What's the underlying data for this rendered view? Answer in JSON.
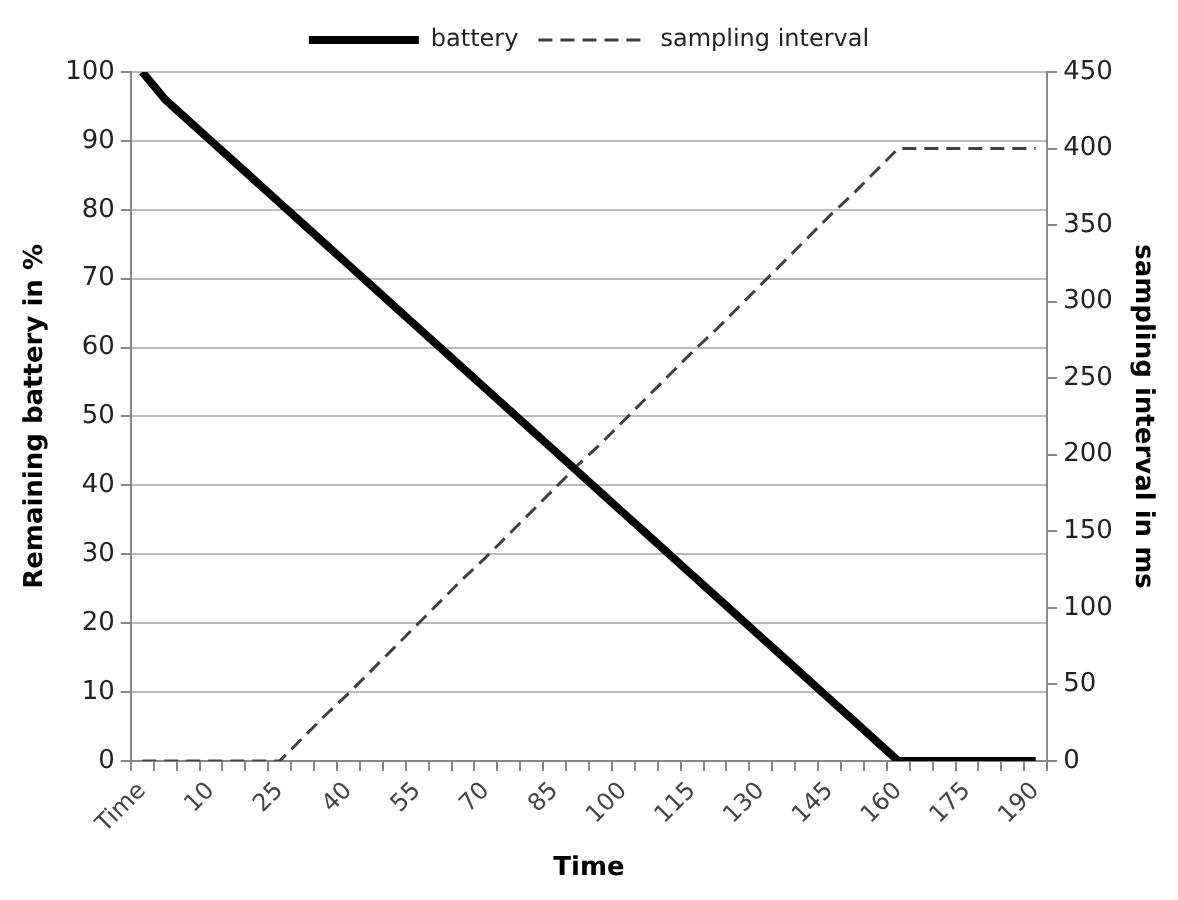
{
  "chart_data": {
    "type": "line",
    "xlabel": "Time",
    "ylabel": "Remaining battery in %",
    "y2label": "sampling interval in ms",
    "categories": [
      "Time",
      null,
      null,
      "10",
      null,
      null,
      "25",
      null,
      null,
      "40",
      null,
      null,
      "55",
      null,
      null,
      "70",
      null,
      null,
      "85",
      null,
      null,
      "100",
      null,
      null,
      "115",
      null,
      null,
      "130",
      null,
      null,
      "145",
      null,
      null,
      "160",
      null,
      null,
      "175",
      null,
      null,
      "190"
    ],
    "series": [
      {
        "name": "battery",
        "color": "#000000",
        "line_style": "solid",
        "values": [
          100,
          96,
          93,
          90,
          87,
          84,
          81,
          78,
          75,
          72,
          69,
          66,
          63,
          60,
          57,
          54,
          51,
          48,
          45,
          42,
          39,
          36,
          33,
          30,
          27,
          24,
          21,
          18,
          15,
          12,
          9,
          6,
          3,
          0,
          0,
          0,
          0,
          0,
          0,
          0
        ]
      },
      {
        "name": "sampling interval",
        "color": "#404040",
        "line_style": "dashed",
        "axis": "y2",
        "values": [
          0,
          0,
          0,
          0,
          0,
          0,
          0,
          15,
          30,
          44,
          59,
          74,
          89,
          104,
          119,
          133,
          148,
          163,
          178,
          193,
          207,
          222,
          237,
          252,
          267,
          281,
          296,
          311,
          326,
          341,
          356,
          370,
          385,
          400,
          400,
          400,
          400,
          400,
          400,
          400
        ]
      }
    ],
    "ylim": [
      0,
      100
    ],
    "yticks": [
      0,
      10,
      20,
      30,
      40,
      50,
      60,
      70,
      80,
      90,
      100
    ],
    "y2lim": [
      0,
      450
    ],
    "y2ticks": [
      0,
      50,
      100,
      150,
      200,
      250,
      300,
      350,
      400,
      450
    ],
    "grid": "y",
    "legend": "top",
    "marker": "none"
  }
}
